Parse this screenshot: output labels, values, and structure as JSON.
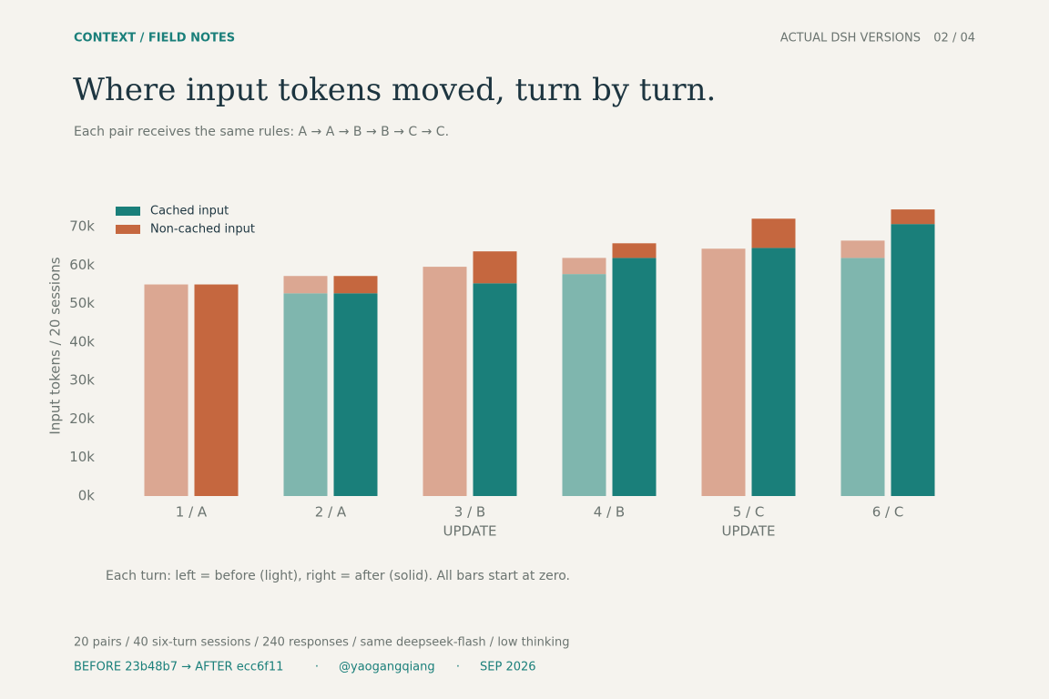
{
  "header": {
    "kicker": "CONTEXT / FIELD NOTES",
    "section": "ACTUAL DSH VERSIONS",
    "page": "02 / 04",
    "title": "Where input tokens moved, turn by turn.",
    "subtitle": "Each pair receives the same rules: A → A → B → B → C → C."
  },
  "chart_data": {
    "type": "paired-stacked-bar",
    "y_label": "Input tokens / 20 sessions",
    "categories": [
      "1 / A",
      "2 / A",
      "3 / B",
      "4 / B",
      "5 / C",
      "6 / C"
    ],
    "category_notes": [
      null,
      null,
      "UPDATE",
      null,
      "UPDATE",
      null
    ],
    "series": [
      {
        "name": "Cached input",
        "color": "#1a7f7a",
        "before_color": "#7fb6ae",
        "before_values": [
          0,
          52.7,
          0,
          57.7,
          0,
          61.9
        ],
        "values": [
          0,
          52.7,
          55.3,
          61.9,
          64.5,
          70.7
        ]
      },
      {
        "name": "Non-cached input",
        "color": "#c5673f",
        "before_color": "#dba792",
        "before_values": [
          55,
          4.5,
          59.6,
          4.2,
          64.3,
          4.5
        ],
        "values": [
          55,
          4.5,
          8.3,
          3.8,
          7.6,
          3.8
        ]
      }
    ],
    "ylim": [
      0,
      75
    ],
    "yticks": [
      {
        "value": 0,
        "label": "0k"
      },
      {
        "value": 10,
        "label": "10k"
      },
      {
        "value": 20,
        "label": "20k"
      },
      {
        "value": 30,
        "label": "30k"
      },
      {
        "value": 40,
        "label": "40k"
      },
      {
        "value": 50,
        "label": "50k"
      },
      {
        "value": 60,
        "label": "60k"
      },
      {
        "value": 70,
        "label": "70k"
      }
    ],
    "legend": "top-left",
    "note": "Each turn: left = before (light), right = after (solid). All bars start at zero."
  },
  "footer": {
    "line": "20 pairs / 40 six-turn sessions / 240 responses / same deepseek-flash / low thinking",
    "meta": [
      "BEFORE 23b48b7  →  AFTER ecc6f11",
      "@yaogangqiang",
      "SEP 2026"
    ],
    "separator": "·"
  }
}
